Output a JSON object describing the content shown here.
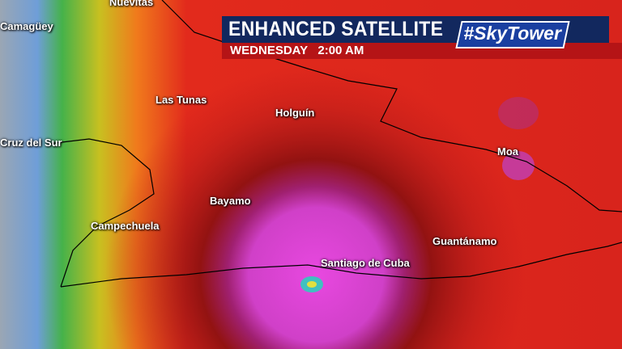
{
  "header": {
    "title": "ENHANCED SATELLITE",
    "logo": "#SkyTower",
    "day": "WEDNESDAY",
    "time": "2:00 AM"
  },
  "cities": [
    "Nuevitas",
    "Camagüey",
    "Las Tunas",
    "Holguín",
    "Cruz del Sur",
    "Moa",
    "Bayamo",
    "Campechuela",
    "Guantánamo",
    "Santiago de Cuba"
  ],
  "colors": {
    "header_bg": "#12285e",
    "subheader_bg": "#b51416",
    "core": "#e040d8",
    "cold_tops": "#8a1010"
  }
}
